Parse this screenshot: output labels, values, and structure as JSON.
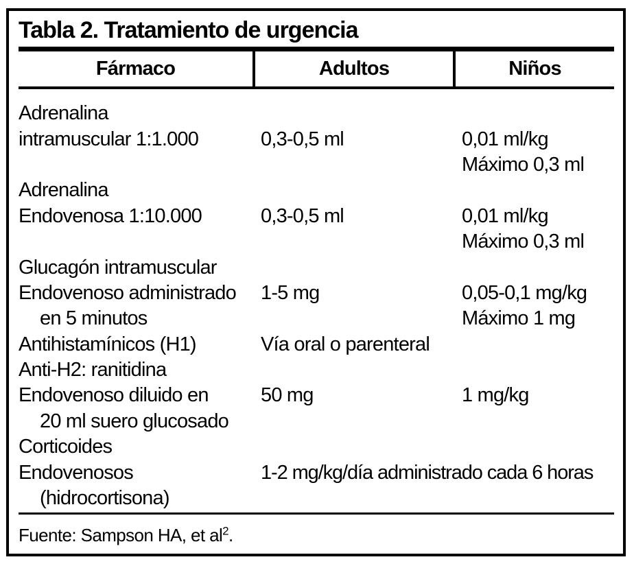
{
  "colors": {
    "text": "#000000",
    "background": "#ffffff",
    "border": "#000000"
  },
  "table": {
    "title": "Tabla 2. Tratamiento de urgencia",
    "columns": [
      "Fármaco",
      "Adultos",
      "Niños"
    ],
    "rows": [
      {
        "farmaco": "Adrenalina",
        "adultos": "",
        "ninos": "",
        "indent": false,
        "span": false
      },
      {
        "farmaco": "intramuscular 1:1.000",
        "adultos": "0,3-0,5 ml",
        "ninos": "0,01 ml/kg",
        "indent": false,
        "span": false
      },
      {
        "farmaco": "",
        "adultos": "",
        "ninos": "Máximo 0,3 ml",
        "indent": false,
        "span": false
      },
      {
        "farmaco": "Adrenalina",
        "adultos": "",
        "ninos": "",
        "indent": false,
        "span": false
      },
      {
        "farmaco": "Endovenosa 1:10.000",
        "adultos": "0,3-0,5 ml",
        "ninos": "0,01 ml/kg",
        "indent": false,
        "span": false
      },
      {
        "farmaco": "",
        "adultos": "",
        "ninos": "Máximo 0,3 ml",
        "indent": false,
        "span": false
      },
      {
        "farmaco": "Glucagón intramuscular",
        "adultos": "",
        "ninos": "",
        "indent": false,
        "span": false
      },
      {
        "farmaco": "Endovenoso administrado",
        "adultos": "1-5 mg",
        "ninos": "0,05-0,1 mg/kg",
        "indent": false,
        "span": false
      },
      {
        "farmaco": "en 5 minutos",
        "adultos": "",
        "ninos": "Máximo 1 mg",
        "indent": true,
        "span": false
      },
      {
        "farmaco": "Antihistamínicos (H1)",
        "adultos": "Vía oral o parenteral",
        "ninos": "",
        "indent": false,
        "span": false
      },
      {
        "farmaco": "Anti-H2: ranitidina",
        "adultos": "",
        "ninos": "",
        "indent": false,
        "span": false
      },
      {
        "farmaco": "Endovenoso diluido en",
        "adultos": "50 mg",
        "ninos": "1 mg/kg",
        "indent": false,
        "span": false
      },
      {
        "farmaco": "20 ml suero glucosado",
        "adultos": "",
        "ninos": "",
        "indent": true,
        "span": false
      },
      {
        "farmaco": "Corticoides",
        "adultos": "",
        "ninos": "",
        "indent": false,
        "span": false
      },
      {
        "farmaco": "Endovenosos",
        "adultos": "1-2 mg/kg/día administrado cada 6 horas",
        "ninos": "",
        "indent": false,
        "span": true
      },
      {
        "farmaco": "(hidrocortisona)",
        "adultos": "",
        "ninos": "",
        "indent": true,
        "span": false
      }
    ],
    "footnote": {
      "text": "Fuente: Sampson HA, et al",
      "superscript": "2",
      "suffix": "."
    }
  },
  "chart_data": {
    "type": "table",
    "title": "Tabla 2. Tratamiento de urgencia",
    "columns": [
      "Fármaco",
      "Adultos",
      "Niños"
    ],
    "entries": [
      {
        "farmaco": "Adrenalina intramuscular 1:1.000",
        "adultos": "0,3-0,5 ml",
        "ninos": "0,01 ml/kg; Máximo 0,3 ml"
      },
      {
        "farmaco": "Adrenalina Endovenosa 1:10.000",
        "adultos": "0,3-0,5 ml",
        "ninos": "0,01 ml/kg; Máximo 0,3 ml"
      },
      {
        "farmaco": "Glucagón intramuscular Endovenoso administrado en 5 minutos",
        "adultos": "1-5 mg",
        "ninos": "0,05-0,1 mg/kg; Máximo 1 mg"
      },
      {
        "farmaco": "Antihistamínicos (H1)",
        "adultos": "Vía oral o parenteral",
        "ninos": ""
      },
      {
        "farmaco": "Anti-H2: ranitidina Endovenoso diluido en 20 ml suero glucosado",
        "adultos": "50 mg",
        "ninos": "1 mg/kg"
      },
      {
        "farmaco": "Corticoides Endovenosos (hidrocortisona)",
        "adultos": "1-2 mg/kg/día administrado cada 6 horas",
        "ninos": ""
      }
    ],
    "source": "Fuente: Sampson HA, et al2."
  }
}
